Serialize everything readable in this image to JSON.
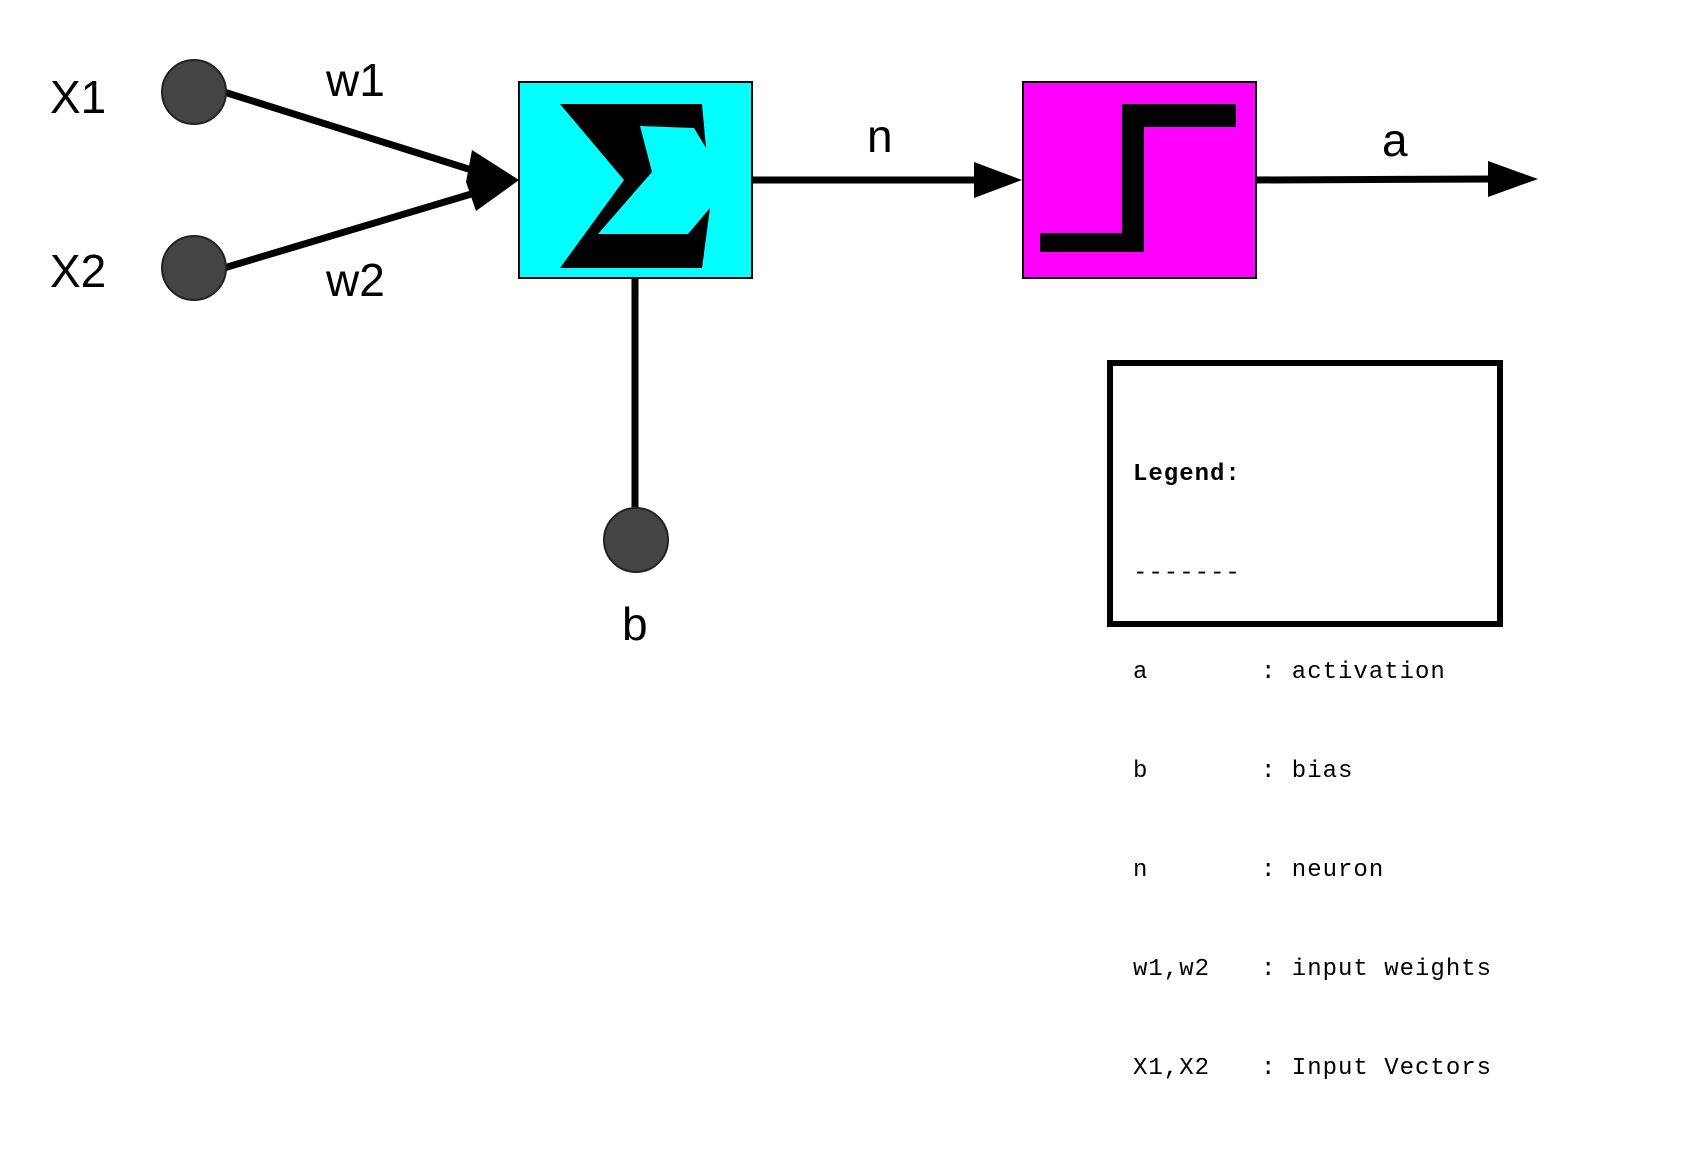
{
  "diagram": {
    "inputs": [
      {
        "label": "X1",
        "weight": "w1"
      },
      {
        "label": "X2",
        "weight": "w2"
      }
    ],
    "bias_label": "b",
    "net_label": "n",
    "output_label": "a",
    "sum_symbol": "Σ",
    "colors": {
      "node_fill": "#444444",
      "sum_box": "#00ffff",
      "activation_box": "#ff00ff",
      "line": "#000000"
    }
  },
  "legend": {
    "title": "Legend:",
    "divider": "-------",
    "entries": [
      {
        "key": "a",
        "desc": ": activation"
      },
      {
        "key": "b",
        "desc": ": bias"
      },
      {
        "key": "n",
        "desc": ": neuron"
      },
      {
        "key": "w1,w2",
        "desc": ": input weights"
      },
      {
        "key": "X1,X2",
        "desc": ": Input Vectors"
      }
    ]
  }
}
